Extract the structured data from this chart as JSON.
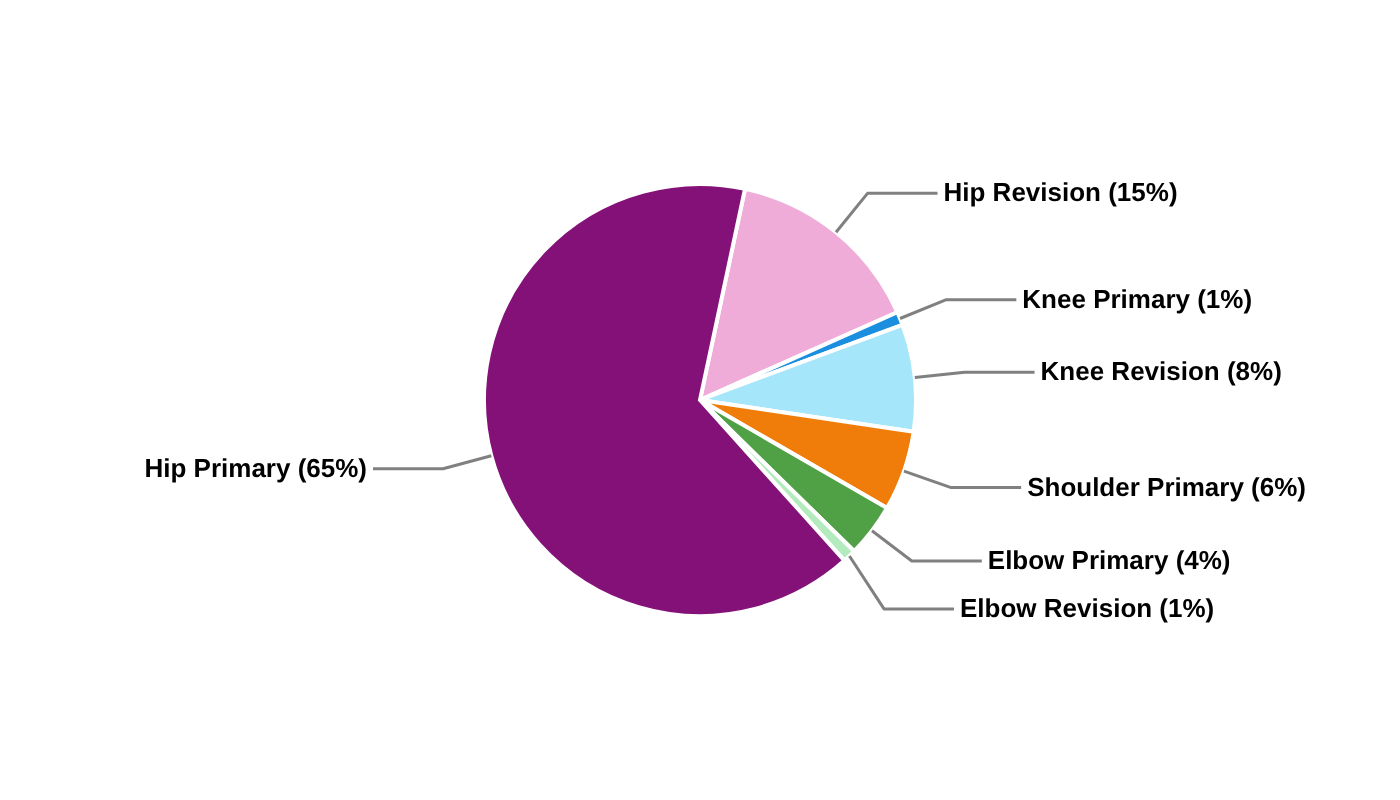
{
  "chart_data": {
    "type": "pie",
    "categories": [
      "Hip Revision",
      "Knee Primary",
      "Knee Revision",
      "Shoulder Primary",
      "Elbow Primary",
      "Elbow Revision",
      "Hip Primary"
    ],
    "values": [
      15,
      1,
      8,
      6,
      4,
      1,
      65
    ],
    "value_labels": [
      "(15%)",
      "(1%)",
      "(8%)",
      "(6%)",
      "(4%)",
      "(1%)",
      "(65%)"
    ],
    "colors": [
      "#f0acd8",
      "#1a8fe0",
      "#a5e6fa",
      "#f07d0a",
      "#50a046",
      "#b4ebbe",
      "#841178"
    ]
  }
}
